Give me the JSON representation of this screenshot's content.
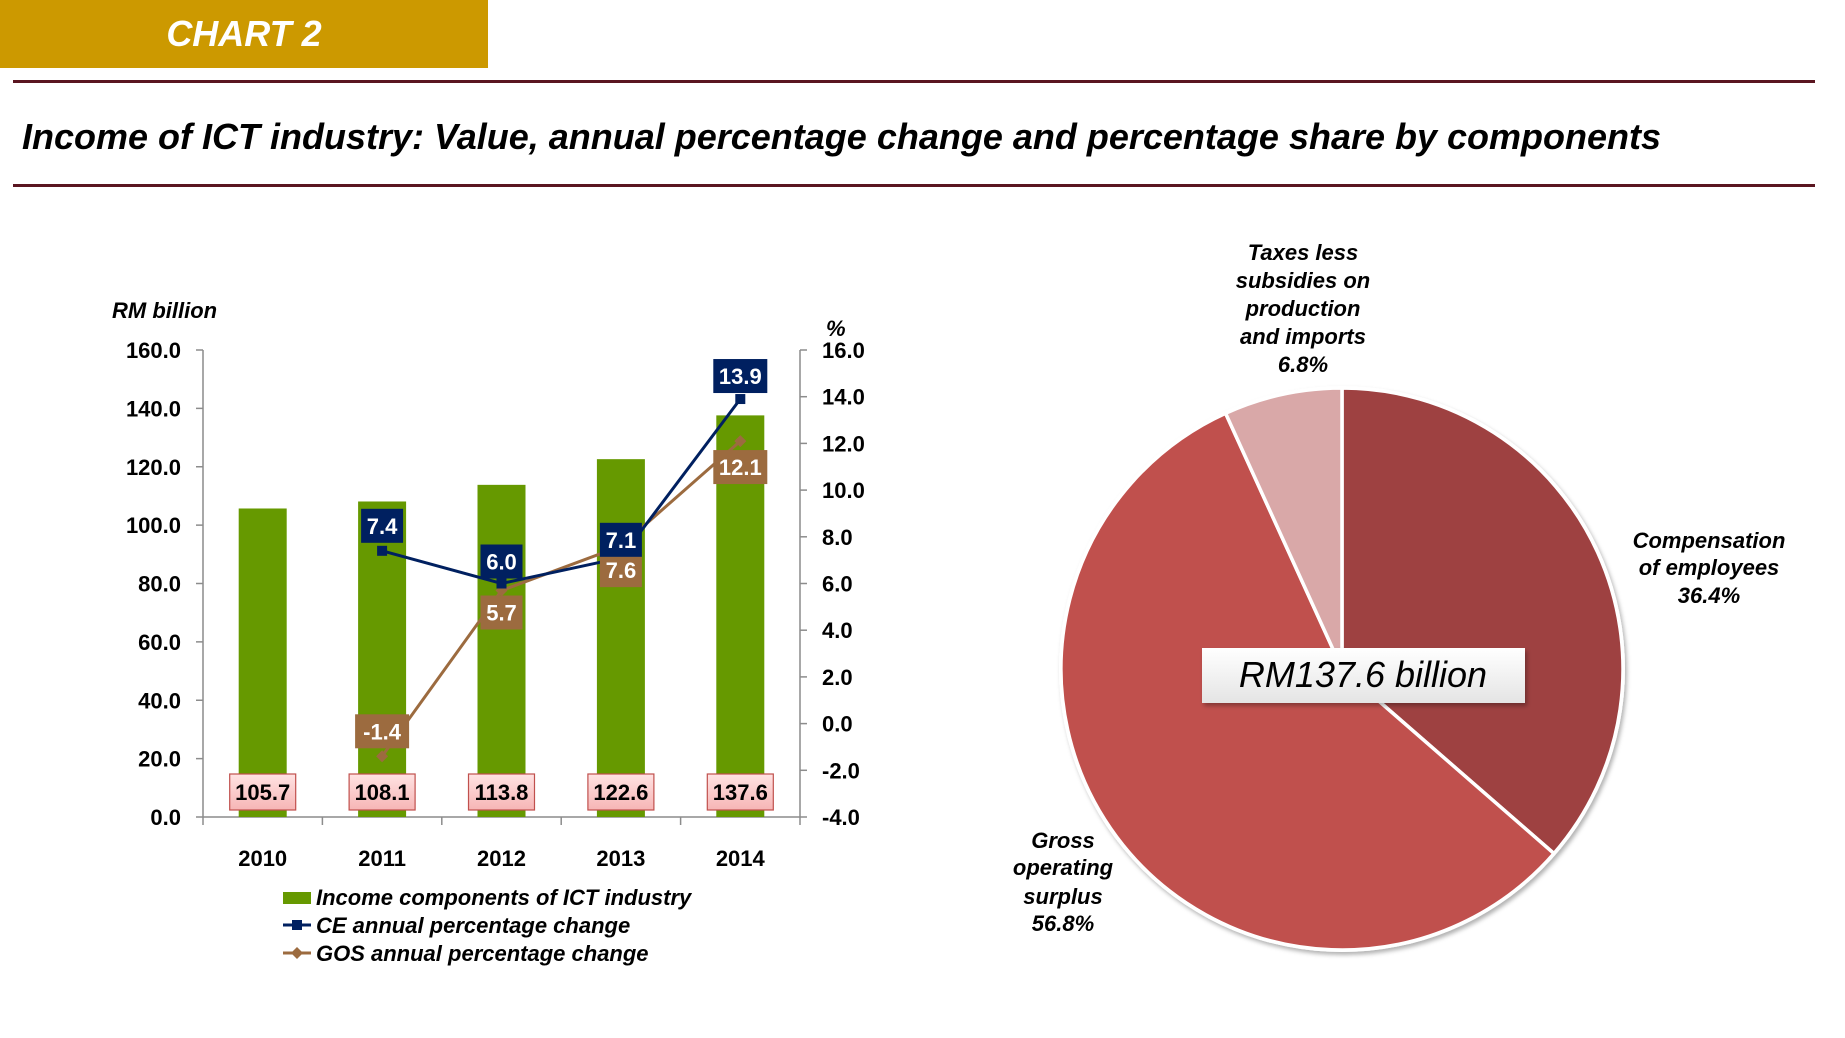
{
  "header": {
    "badge": "CHART 2"
  },
  "page_title": "Income of ICT industry: Value, annual percentage change and percentage share by components",
  "chart_data": [
    {
      "type": "bar",
      "title": "",
      "ylabel": "RM billion",
      "y2label": "%",
      "categories": [
        "2010",
        "2011",
        "2012",
        "2013",
        "2014"
      ],
      "ylim": [
        0,
        160
      ],
      "yticks": [
        "0.0",
        "20.0",
        "40.0",
        "60.0",
        "80.0",
        "100.0",
        "120.0",
        "140.0",
        "160.0"
      ],
      "y2lim": [
        -4,
        16
      ],
      "y2ticks": [
        "-4.0",
        "-2.0",
        "0.0",
        "2.0",
        "4.0",
        "6.0",
        "8.0",
        "10.0",
        "12.0",
        "14.0",
        "16.0"
      ],
      "grid": false,
      "legend_position": "bottom",
      "series": [
        {
          "name": "Income components of ICT industry",
          "type": "bar",
          "axis": "left",
          "color": "#669900",
          "values": [
            105.7,
            108.1,
            113.8,
            122.6,
            137.6
          ],
          "labels": [
            "105.7",
            "108.1",
            "113.8",
            "122.6",
            "137.6"
          ]
        },
        {
          "name": "CE annual percentage change",
          "type": "line",
          "axis": "right",
          "color": "#002060",
          "marker": "square",
          "values": [
            null,
            7.4,
            6.0,
            7.1,
            13.9
          ],
          "labels": [
            null,
            "7.4",
            "6.0",
            "7.1",
            "13.9"
          ]
        },
        {
          "name": "GOS annual percentage change",
          "type": "line",
          "axis": "right",
          "color": "#9C6B3F",
          "marker": "diamond",
          "values": [
            null,
            -1.4,
            5.7,
            7.6,
            12.1
          ],
          "labels": [
            null,
            "-1.4",
            "5.7",
            "7.6",
            "12.1"
          ]
        }
      ]
    },
    {
      "type": "pie",
      "center_label": "RM137.6 billion",
      "slices": [
        {
          "label": [
            "Compensation",
            "of employees"
          ],
          "value": 36.4,
          "pct_label": "36.4%",
          "color": "#9E4141"
        },
        {
          "label": [
            "Gross",
            "operating",
            "surplus"
          ],
          "value": 56.8,
          "pct_label": "56.8%",
          "color": "#C0504D"
        },
        {
          "label": [
            "Taxes less",
            "subsidies on",
            "production",
            "and imports"
          ],
          "value": 6.8,
          "pct_label": "6.8%",
          "color": "#D9A8A8"
        }
      ]
    }
  ]
}
